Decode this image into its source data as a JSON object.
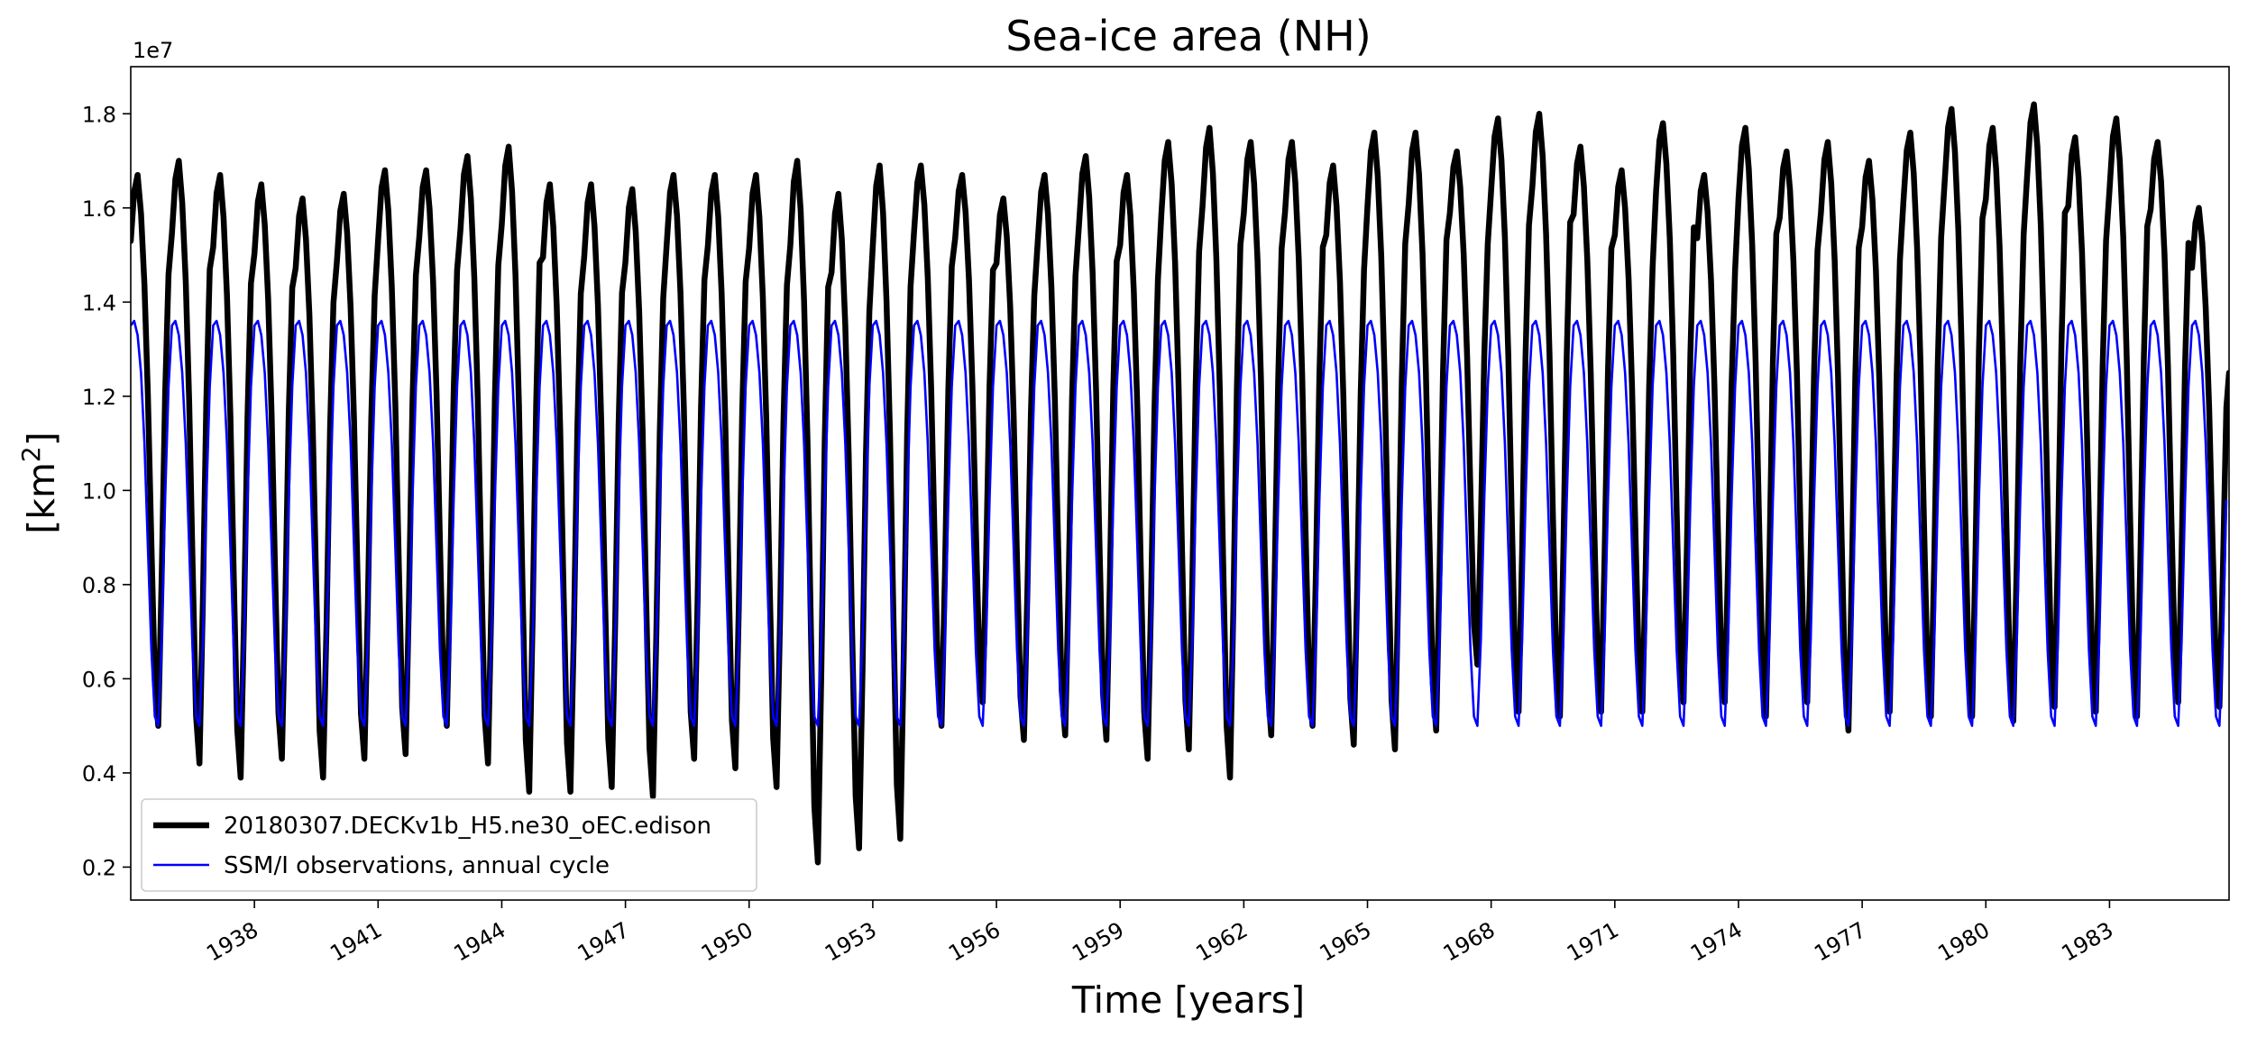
{
  "chart_data": {
    "type": "line",
    "title": "Sea-ice area (NH)",
    "xlabel": "Time [years]",
    "ylabel": "[km",
    "ylabel_superscript": "2",
    "ylabel_close": "]",
    "y_offset_label": "1e7",
    "xlim": [
      1935.0,
      1985.9
    ],
    "ylim": [
      0.13,
      1.9
    ],
    "x_ticks": [
      1938,
      1941,
      1944,
      1947,
      1950,
      1953,
      1956,
      1959,
      1962,
      1965,
      1968,
      1971,
      1974,
      1977,
      1980,
      1983
    ],
    "x_tick_labels": [
      "1938",
      "1941",
      "1944",
      "1947",
      "1950",
      "1953",
      "1956",
      "1959",
      "1962",
      "1965",
      "1968",
      "1971",
      "1974",
      "1977",
      "1980",
      "1983"
    ],
    "y_ticks": [
      0.2,
      0.4,
      0.6,
      0.8,
      1.0,
      1.2,
      1.4,
      1.6,
      1.8
    ],
    "y_tick_labels": [
      "0.2",
      "0.4",
      "0.6",
      "0.8",
      "1.0",
      "1.2",
      "1.4",
      "1.6",
      "1.8"
    ],
    "legend": {
      "placement": "bottom-left"
    },
    "series": [
      {
        "name": "20180307.DECKv1b_H5.ne30_oEC.edison",
        "color": "#000000",
        "kind": "model",
        "start_year": 1935,
        "annual_max": [
          1.67,
          1.7,
          1.67,
          1.65,
          1.62,
          1.63,
          1.68,
          1.68,
          1.71,
          1.73,
          1.65,
          1.65,
          1.64,
          1.67,
          1.67,
          1.67,
          1.7,
          1.63,
          1.69,
          1.69,
          1.67,
          1.62,
          1.67,
          1.71,
          1.67,
          1.74,
          1.77,
          1.74,
          1.74,
          1.69,
          1.76,
          1.76,
          1.72,
          1.79,
          1.8,
          1.73,
          1.68,
          1.78,
          1.67,
          1.77,
          1.72,
          1.74,
          1.7,
          1.76,
          1.81,
          1.77,
          1.82,
          1.75,
          1.79,
          1.74,
          1.6
        ],
        "annual_min": [
          0.5,
          0.42,
          0.39,
          0.43,
          0.39,
          0.43,
          0.44,
          0.5,
          0.42,
          0.36,
          0.36,
          0.37,
          0.35,
          0.43,
          0.41,
          0.37,
          0.21,
          0.24,
          0.26,
          0.5,
          0.55,
          0.47,
          0.48,
          0.47,
          0.43,
          0.45,
          0.39,
          0.48,
          0.5,
          0.46,
          0.45,
          0.49,
          0.63,
          0.53,
          0.52,
          0.53,
          0.53,
          0.55,
          0.55,
          0.52,
          0.55,
          0.49,
          0.53,
          0.52,
          0.52,
          0.51,
          0.54,
          0.53,
          0.52,
          0.55,
          0.54
        ],
        "end_value": 1.25
      },
      {
        "name": "SSM/I observations, annual cycle",
        "color": "#0000ff",
        "kind": "climatology",
        "monthly": [
          1.35,
          1.36,
          1.33,
          1.25,
          1.1,
          0.88,
          0.66,
          0.52,
          0.5,
          0.68,
          0.98,
          1.22
        ]
      }
    ]
  }
}
